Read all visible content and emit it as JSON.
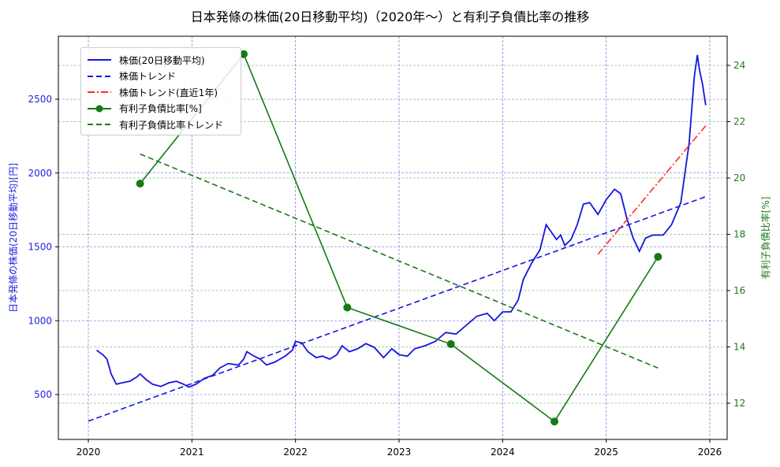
{
  "chart_data": {
    "type": "line",
    "title": "日本発條の株価(20日移動平均)（2020年～）と有利子負債比率の推移",
    "xlabel": "",
    "ylabel": "日本発條の株価(20日移動平均)[円]",
    "ylabel_right": "有利子負債比率[%]",
    "x_ticks": [
      "2020",
      "2021",
      "2022",
      "2023",
      "2024",
      "2025",
      "2026"
    ],
    "y_ticks_left": [
      "500",
      "1000",
      "1500",
      "2000",
      "2500"
    ],
    "y_ticks_right": [
      "12",
      "14",
      "16",
      "18",
      "20",
      "22",
      "24"
    ],
    "xlim": [
      2019.72,
      2026.17
    ],
    "ylim_left": [
      220,
      2900
    ],
    "ylim_right": [
      10.8,
      25.0
    ],
    "grid": true,
    "legend_position": "upper left",
    "legend": [
      "株価(20日移動平均)",
      "株価トレンド",
      "株価トレンド(直近1年)",
      "有利子負債比率[%]",
      "有利子負債比率トレンド"
    ],
    "series": [
      {
        "name": "株価(20日移動平均)",
        "axis": "left",
        "color": "#1515e0",
        "style": "solid",
        "points": [
          [
            2020.08,
            800
          ],
          [
            2020.14,
            770
          ],
          [
            2020.18,
            740
          ],
          [
            2020.22,
            640
          ],
          [
            2020.27,
            570
          ],
          [
            2020.33,
            580
          ],
          [
            2020.4,
            590
          ],
          [
            2020.47,
            620
          ],
          [
            2020.5,
            640
          ],
          [
            2020.56,
            600
          ],
          [
            2020.62,
            570
          ],
          [
            2020.7,
            555
          ],
          [
            2020.78,
            580
          ],
          [
            2020.85,
            590
          ],
          [
            2020.92,
            570
          ],
          [
            2020.97,
            550
          ],
          [
            2021.04,
            570
          ],
          [
            2021.12,
            610
          ],
          [
            2021.2,
            630
          ],
          [
            2021.27,
            680
          ],
          [
            2021.35,
            710
          ],
          [
            2021.45,
            700
          ],
          [
            2021.5,
            740
          ],
          [
            2021.53,
            790
          ],
          [
            2021.6,
            760
          ],
          [
            2021.66,
            740
          ],
          [
            2021.72,
            700
          ],
          [
            2021.8,
            720
          ],
          [
            2021.9,
            760
          ],
          [
            2021.97,
            800
          ],
          [
            2022.0,
            860
          ],
          [
            2022.06,
            850
          ],
          [
            2022.12,
            790
          ],
          [
            2022.2,
            750
          ],
          [
            2022.26,
            760
          ],
          [
            2022.33,
            740
          ],
          [
            2022.4,
            770
          ],
          [
            2022.45,
            830
          ],
          [
            2022.52,
            790
          ],
          [
            2022.6,
            810
          ],
          [
            2022.68,
            845
          ],
          [
            2022.76,
            820
          ],
          [
            2022.85,
            750
          ],
          [
            2022.93,
            810
          ],
          [
            2023.0,
            770
          ],
          [
            2023.08,
            760
          ],
          [
            2023.15,
            810
          ],
          [
            2023.25,
            830
          ],
          [
            2023.35,
            860
          ],
          [
            2023.45,
            920
          ],
          [
            2023.55,
            910
          ],
          [
            2023.65,
            970
          ],
          [
            2023.75,
            1030
          ],
          [
            2023.85,
            1050
          ],
          [
            2023.92,
            1000
          ],
          [
            2024.0,
            1060
          ],
          [
            2024.08,
            1060
          ],
          [
            2024.15,
            1140
          ],
          [
            2024.2,
            1280
          ],
          [
            2024.28,
            1390
          ],
          [
            2024.36,
            1480
          ],
          [
            2024.42,
            1650
          ],
          [
            2024.47,
            1600
          ],
          [
            2024.52,
            1550
          ],
          [
            2024.56,
            1580
          ],
          [
            2024.6,
            1510
          ],
          [
            2024.66,
            1550
          ],
          [
            2024.72,
            1650
          ],
          [
            2024.78,
            1790
          ],
          [
            2024.84,
            1800
          ],
          [
            2024.92,
            1720
          ],
          [
            2025.0,
            1820
          ],
          [
            2025.08,
            1890
          ],
          [
            2025.14,
            1860
          ],
          [
            2025.2,
            1690
          ],
          [
            2025.26,
            1560
          ],
          [
            2025.32,
            1470
          ],
          [
            2025.38,
            1560
          ],
          [
            2025.45,
            1580
          ],
          [
            2025.55,
            1580
          ],
          [
            2025.63,
            1650
          ],
          [
            2025.72,
            1800
          ],
          [
            2025.8,
            2200
          ],
          [
            2025.85,
            2650
          ],
          [
            2025.88,
            2800
          ],
          [
            2025.9,
            2700
          ],
          [
            2025.93,
            2600
          ],
          [
            2025.96,
            2460
          ]
        ]
      },
      {
        "name": "株価トレンド",
        "axis": "left",
        "color": "#1515e0",
        "style": "dashed",
        "points": [
          [
            2020.0,
            320
          ],
          [
            2025.96,
            1840
          ]
        ]
      },
      {
        "name": "株価トレンド(直近1年)",
        "axis": "left",
        "color": "#ff2a2a",
        "style": "dashdot",
        "points": [
          [
            2024.92,
            1450
          ],
          [
            2025.96,
            2320
          ]
        ]
      },
      {
        "name": "有利子負債比率[%]",
        "axis": "right",
        "color": "#157a15",
        "style": "solid-marker",
        "x": [
          2020.5,
          2021.5,
          2022.5,
          2023.5,
          2024.5,
          2025.5
        ],
        "values": [
          19.8,
          24.4,
          15.4,
          14.1,
          11.35,
          17.2
        ]
      },
      {
        "name": "有利子負債比率トレンド",
        "axis": "right",
        "color": "#157a15",
        "style": "dashed",
        "points": [
          [
            2020.5,
            20.85
          ],
          [
            2025.5,
            13.25
          ]
        ]
      }
    ]
  }
}
